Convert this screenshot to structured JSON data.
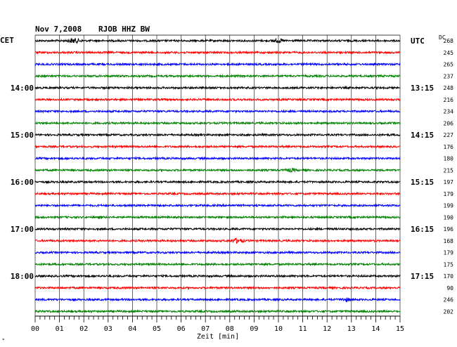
{
  "header": {
    "date": "Nov 7,2008",
    "station": "RJOB HHZ BW",
    "left_zone": "CET",
    "right_zone": "UTC",
    "dc_heading": "DC"
  },
  "chart_data": {
    "type": "line",
    "title": "Nov 7,2008   RJOB HHZ BW",
    "xlabel": "Zeit [min]",
    "xlim": [
      0,
      15
    ],
    "x_ticks": [
      "00",
      "01",
      "02",
      "03",
      "04",
      "05",
      "06",
      "07",
      "08",
      "09",
      "10",
      "11",
      "12",
      "13",
      "14",
      "15"
    ],
    "grid": true,
    "trace_colors": [
      "#000000",
      "#ff0000",
      "#0000ff",
      "#008000"
    ],
    "left_time_labels": [
      {
        "row": 4,
        "label": "14:00"
      },
      {
        "row": 8,
        "label": "15:00"
      },
      {
        "row": 12,
        "label": "16:00"
      },
      {
        "row": 16,
        "label": "17:00"
      },
      {
        "row": 20,
        "label": "18:00"
      }
    ],
    "right_time_labels": [
      {
        "row": 0,
        "label": "UTC"
      },
      {
        "row": 4,
        "label": "13:15"
      },
      {
        "row": 8,
        "label": "14:15"
      },
      {
        "row": 12,
        "label": "15:15"
      },
      {
        "row": 16,
        "label": "16:15"
      },
      {
        "row": 20,
        "label": "17:15"
      }
    ],
    "dc_values": [
      "268",
      "245",
      "265",
      "237",
      "248",
      "216",
      "234",
      "206",
      "227",
      "176",
      "180",
      "215",
      "197",
      "179",
      "199",
      "190",
      "196",
      "168",
      "179",
      "175",
      "170",
      "90",
      "246",
      "202"
    ],
    "events": [
      {
        "row": 0,
        "minute": 1.6,
        "strength": 3.0
      },
      {
        "row": 0,
        "minute": 10.0,
        "strength": 2.0
      },
      {
        "row": 11,
        "minute": 10.5,
        "strength": 2.0
      },
      {
        "row": 17,
        "minute": 8.3,
        "strength": 3.0
      },
      {
        "row": 22,
        "minute": 12.8,
        "strength": 1.8
      }
    ]
  }
}
